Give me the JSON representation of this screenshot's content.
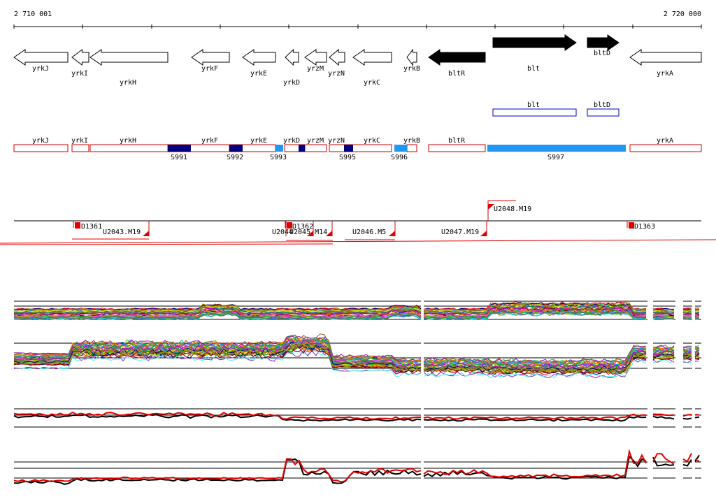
{
  "ruler": {
    "start_label": "2 710 001",
    "end_label": "2 720 000"
  },
  "genes": [
    {
      "id": "yrkJ",
      "label": "yrkJ",
      "strand": "-",
      "filled": false
    },
    {
      "id": "yrkI",
      "label": "yrkI",
      "strand": "-",
      "filled": false
    },
    {
      "id": "yrkH",
      "label": "yrkH",
      "strand": "-",
      "filled": false
    },
    {
      "id": "yrkF",
      "label": "yrkF",
      "strand": "-",
      "filled": false
    },
    {
      "id": "yrkE",
      "label": "yrkE",
      "strand": "-",
      "filled": false
    },
    {
      "id": "yrkD",
      "label": "yrkD",
      "strand": "-",
      "filled": false
    },
    {
      "id": "yrzM",
      "label": "yrzM",
      "strand": "-",
      "filled": false
    },
    {
      "id": "yrzN",
      "label": "yrzN",
      "strand": "-",
      "filled": false
    },
    {
      "id": "yrkC",
      "label": "yrkC",
      "strand": "-",
      "filled": false
    },
    {
      "id": "yrkB",
      "label": "yrkB",
      "strand": "-",
      "filled": false
    },
    {
      "id": "bltR",
      "label": "bltR",
      "strand": "-",
      "filled": true
    },
    {
      "id": "blt",
      "label": "blt",
      "strand": "+",
      "filled": true
    },
    {
      "id": "bltD",
      "label": "bltD",
      "strand": "+",
      "filled": true
    },
    {
      "id": "yrkA",
      "label": "yrkA",
      "strand": "-",
      "filled": false
    }
  ],
  "operons": [
    {
      "id": "blt",
      "label": "blt"
    },
    {
      "id": "bltD",
      "label": "bltD"
    }
  ],
  "transcripts": [
    {
      "id": "yrkJ",
      "label": "yrkJ"
    },
    {
      "id": "yrkI",
      "label": "yrkI"
    },
    {
      "id": "yrkH",
      "label": "yrkH"
    },
    {
      "id": "yrkF",
      "label": "yrkF"
    },
    {
      "id": "yrkE",
      "label": "yrkE"
    },
    {
      "id": "yrkD",
      "label": "yrkD"
    },
    {
      "id": "yrzM",
      "label": "yrzM"
    },
    {
      "id": "yrzN",
      "label": "yrzN"
    },
    {
      "id": "yrkC",
      "label": "yrkC"
    },
    {
      "id": "yrkB",
      "label": "yrkB"
    },
    {
      "id": "bltR",
      "label": "bltR"
    },
    {
      "id": "yrkA",
      "label": "yrkA"
    }
  ],
  "segments": [
    {
      "id": "S991",
      "label": "S991",
      "color": "#000080"
    },
    {
      "id": "S992",
      "label": "S992",
      "color": "#000080"
    },
    {
      "id": "S993",
      "label": "S993",
      "color": "#2196F3"
    },
    {
      "id": "S994",
      "label": "",
      "color": "#000080"
    },
    {
      "id": "S995",
      "label": "S995",
      "color": "#000080"
    },
    {
      "id": "S996",
      "label": "S996",
      "color": "#2196F3"
    },
    {
      "id": "S997",
      "label": "S997",
      "color": "#2196F3"
    }
  ],
  "features": [
    {
      "id": "D1361",
      "label": "D1361"
    },
    {
      "id": "U2043",
      "label": "U2043.M19"
    },
    {
      "id": "D1362",
      "label": "D1362"
    },
    {
      "id": "U2044",
      "label": "U2044"
    },
    {
      "id": "U2045",
      "label": "U2045.M14"
    },
    {
      "id": "U2046",
      "label": "U2046.M5"
    },
    {
      "id": "U2047",
      "label": "U2047.M19"
    },
    {
      "id": "U2048",
      "label": "U2048.M19"
    },
    {
      "id": "D1363",
      "label": "D1363"
    }
  ],
  "colors": {
    "transcript_border": "#cc0000",
    "operon_border": "#0000cc",
    "feature_red": "#e00000",
    "dark_segment": "#000080",
    "light_segment": "#2196F3"
  }
}
